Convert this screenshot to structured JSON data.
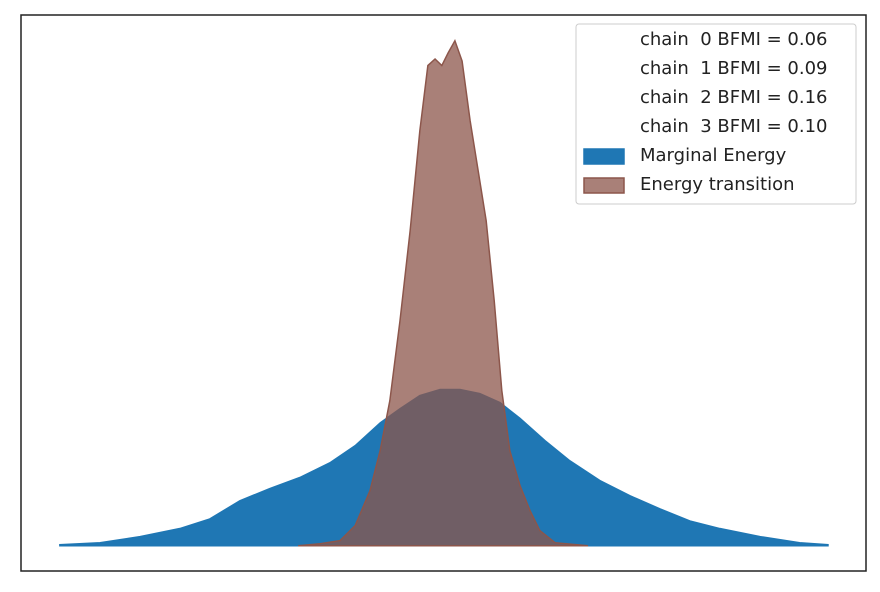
{
  "chart_data": {
    "type": "area",
    "xlim": [
      -10,
      10
    ],
    "ylim": [
      -0.05,
      1.05
    ],
    "legend": "upper right",
    "legend_notes": [
      "chain  0 BFMI = 0.06",
      "chain  1 BFMI = 0.09",
      "chain  2 BFMI = 0.16",
      "chain  3 BFMI = 0.10"
    ],
    "series": [
      {
        "name": "Marginal Energy",
        "color": "#1f77b4",
        "opacity": 1,
        "x": [
          -9.08,
          -8.13,
          -7.18,
          -6.24,
          -5.53,
          -4.82,
          -4.11,
          -3.4,
          -2.69,
          -2.09,
          -1.5,
          -1.03,
          -0.56,
          -0.08,
          0.39,
          0.86,
          1.34,
          1.81,
          2.4,
          2.99,
          3.7,
          4.41,
          5.12,
          5.83,
          6.54,
          7.49,
          8.43,
          9.1
        ],
        "values": [
          0.002,
          0.006,
          0.018,
          0.034,
          0.053,
          0.089,
          0.113,
          0.135,
          0.164,
          0.198,
          0.243,
          0.271,
          0.297,
          0.309,
          0.309,
          0.301,
          0.283,
          0.252,
          0.208,
          0.168,
          0.129,
          0.099,
          0.073,
          0.049,
          0.034,
          0.018,
          0.006,
          0.002
        ]
      },
      {
        "name": "Energy transition",
        "color": "#8c564b",
        "opacity": 0.75,
        "x": [
          -3.44,
          -2.92,
          -2.45,
          -2.09,
          -1.74,
          -1.5,
          -1.27,
          -1.03,
          -0.79,
          -0.56,
          -0.37,
          -0.2,
          -0.04,
          0.11,
          0.27,
          0.44,
          0.63,
          0.82,
          1.01,
          1.2,
          1.38,
          1.57,
          1.81,
          2.05,
          2.28,
          2.64,
          3.42
        ],
        "values": [
          0,
          0.004,
          0.01,
          0.04,
          0.109,
          0.188,
          0.287,
          0.445,
          0.623,
          0.821,
          0.95,
          0.963,
          0.95,
          0.975,
          0.999,
          0.959,
          0.841,
          0.742,
          0.643,
          0.485,
          0.307,
          0.188,
          0.119,
          0.069,
          0.03,
          0.006,
          0
        ]
      }
    ]
  }
}
